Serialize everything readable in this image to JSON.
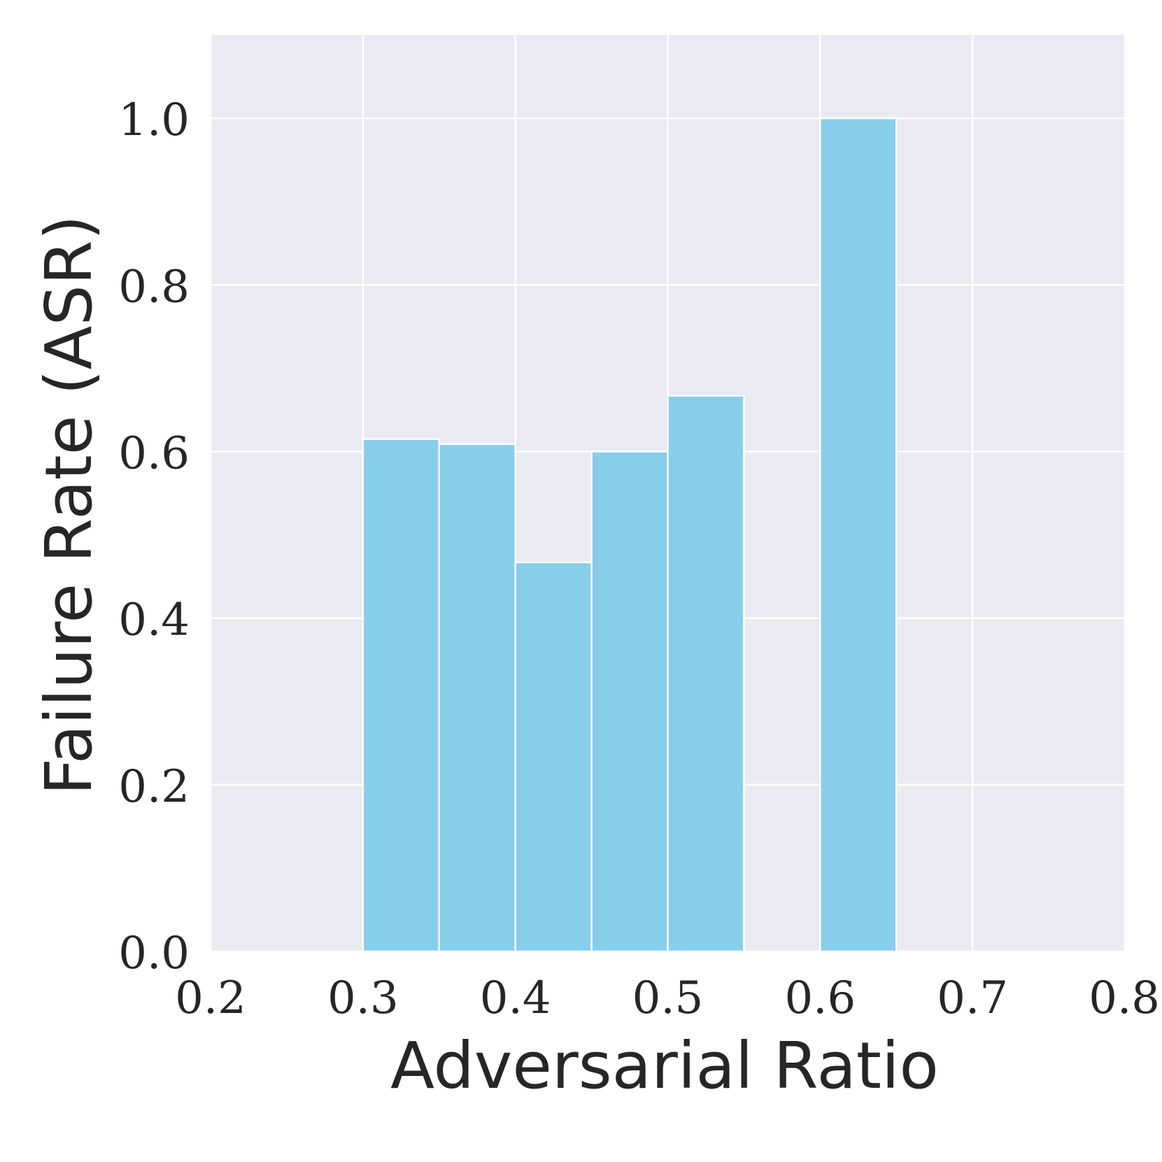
{
  "chart_data": {
    "type": "bar",
    "xlabel": "Adversarial Ratio",
    "ylabel": "Failure Rate (ASR)",
    "xlim": [
      0.2,
      0.8
    ],
    "ylim": [
      0.0,
      1.1
    ],
    "xticks": [
      "0.2",
      "0.3",
      "0.4",
      "0.5",
      "0.6",
      "0.7",
      "0.8"
    ],
    "yticks": [
      "0.0",
      "0.2",
      "0.4",
      "0.6",
      "0.8",
      "1.0"
    ],
    "bin_width": 0.05,
    "bars": [
      {
        "x": 0.3,
        "value": 0.615
      },
      {
        "x": 0.35,
        "value": 0.609
      },
      {
        "x": 0.4,
        "value": 0.467
      },
      {
        "x": 0.45,
        "value": 0.6
      },
      {
        "x": 0.5,
        "value": 0.667
      },
      {
        "x": 0.6,
        "value": 1.0
      }
    ],
    "grid": true,
    "colors": {
      "bar": "#87ceeb",
      "background": "#eaeaf2",
      "grid": "#ffffff",
      "text": "#262626"
    }
  }
}
